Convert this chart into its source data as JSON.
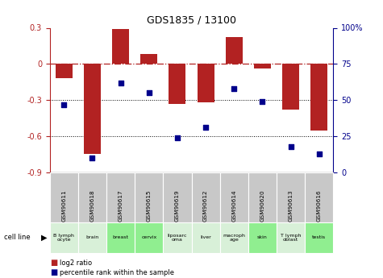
{
  "title": "GDS1835 / 13100",
  "samples": [
    "GSM90611",
    "GSM90618",
    "GSM90617",
    "GSM90615",
    "GSM90619",
    "GSM90612",
    "GSM90614",
    "GSM90620",
    "GSM90613",
    "GSM90616"
  ],
  "cell_lines": [
    "B lymph\nocyte",
    "brain",
    "breast",
    "cervix",
    "liposarc\noma",
    "liver",
    "macroph\nage",
    "skin",
    "T lymph\noblast",
    "testis"
  ],
  "cell_line_colors": [
    "#d8f0d8",
    "#d8f0d8",
    "#90ee90",
    "#90ee90",
    "#d8f0d8",
    "#d8f0d8",
    "#d8f0d8",
    "#90ee90",
    "#d8f0d8",
    "#90ee90"
  ],
  "log2_ratio": [
    -0.12,
    -0.75,
    0.29,
    0.08,
    -0.33,
    -0.32,
    0.22,
    -0.04,
    -0.38,
    -0.55
  ],
  "percentile_rank": [
    47,
    10,
    62,
    55,
    24,
    31,
    58,
    49,
    18,
    13
  ],
  "ylim_left": [
    -0.9,
    0.3
  ],
  "ylim_right": [
    0,
    100
  ],
  "bar_color": "#b22222",
  "dot_color": "#00008b",
  "zero_line_color": "#b22222",
  "plot_bg": "#ffffff",
  "gsm_bg": "#c8c8c8"
}
